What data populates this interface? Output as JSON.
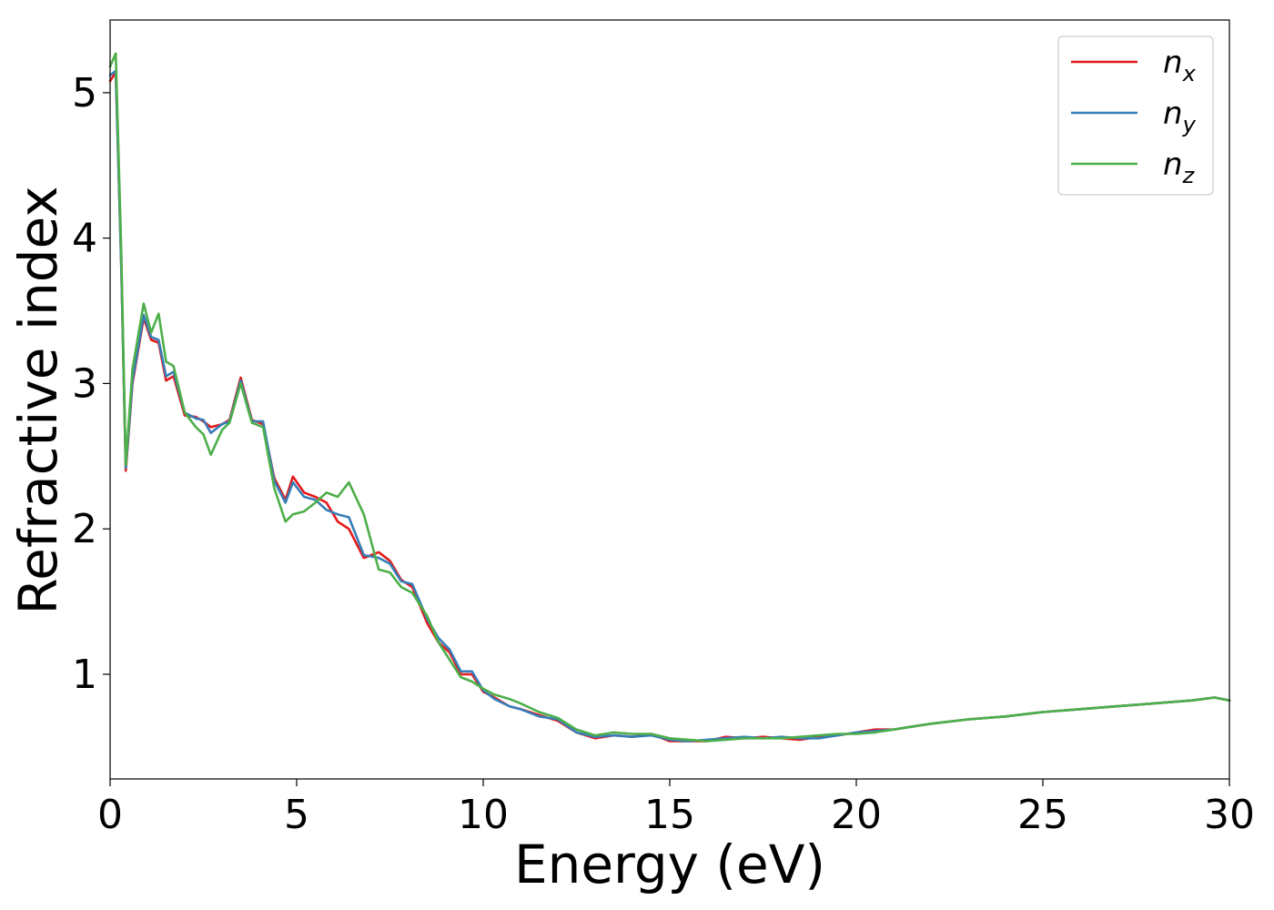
{
  "chart_data": {
    "type": "line",
    "xlabel": "Energy (eV)",
    "ylabel": "Refractive index",
    "xlim": [
      0,
      30
    ],
    "ylim": [
      0.28,
      5.5
    ],
    "x_ticks": [
      "0",
      "5",
      "10",
      "15",
      "20",
      "25",
      "30"
    ],
    "y_ticks": [
      "1",
      "2",
      "3",
      "4",
      "5"
    ],
    "grid": false,
    "legend_position": "top-right",
    "series": [
      {
        "name": "n_x",
        "label_base": "n",
        "label_sub": "x",
        "color": "#e41a1c",
        "x": [
          0,
          0.15,
          0.3,
          0.42,
          0.6,
          0.9,
          1.1,
          1.3,
          1.5,
          1.7,
          2.0,
          2.3,
          2.5,
          2.7,
          3.0,
          3.2,
          3.5,
          3.8,
          4.1,
          4.4,
          4.7,
          4.9,
          5.2,
          5.5,
          5.8,
          6.1,
          6.4,
          6.8,
          7.2,
          7.5,
          7.8,
          8.1,
          8.5,
          8.8,
          9.1,
          9.4,
          9.7,
          10.0,
          10.3,
          10.7,
          11.0,
          11.5,
          12.0,
          12.5,
          13.0,
          13.5,
          14.0,
          14.5,
          15.0,
          15.5,
          16.0,
          16.5,
          17.0,
          17.5,
          18.0,
          18.5,
          19.0,
          19.5,
          20.0,
          20.5,
          21.0,
          22.0,
          23.0,
          24.0,
          25.0,
          26.0,
          27.0,
          28.0,
          29.0,
          29.6,
          30.0
        ],
        "y": [
          5.08,
          5.14,
          3.8,
          2.4,
          3.0,
          3.45,
          3.3,
          3.28,
          3.02,
          3.05,
          2.78,
          2.77,
          2.74,
          2.7,
          2.72,
          2.75,
          3.04,
          2.75,
          2.72,
          2.35,
          2.2,
          2.36,
          2.25,
          2.22,
          2.18,
          2.05,
          2.0,
          1.8,
          1.84,
          1.78,
          1.65,
          1.6,
          1.35,
          1.22,
          1.15,
          1.0,
          1.0,
          0.88,
          0.84,
          0.78,
          0.76,
          0.72,
          0.68,
          0.6,
          0.56,
          0.58,
          0.57,
          0.59,
          0.54,
          0.54,
          0.54,
          0.57,
          0.56,
          0.57,
          0.56,
          0.55,
          0.57,
          0.58,
          0.6,
          0.62,
          0.62,
          0.66,
          0.69,
          0.71,
          0.74,
          0.76,
          0.78,
          0.8,
          0.82,
          0.84,
          0.82
        ]
      },
      {
        "name": "n_y",
        "label_base": "n",
        "label_sub": "y",
        "color": "#377eb8",
        "x": [
          0,
          0.15,
          0.3,
          0.42,
          0.6,
          0.9,
          1.1,
          1.3,
          1.5,
          1.7,
          2.0,
          2.3,
          2.5,
          2.7,
          3.0,
          3.2,
          3.5,
          3.8,
          4.1,
          4.4,
          4.7,
          4.9,
          5.2,
          5.5,
          5.8,
          6.1,
          6.4,
          6.8,
          7.2,
          7.5,
          7.8,
          8.1,
          8.5,
          8.8,
          9.1,
          9.4,
          9.7,
          10.0,
          10.3,
          10.7,
          11.0,
          11.5,
          12.0,
          12.5,
          13.0,
          13.5,
          14.0,
          14.5,
          15.0,
          15.5,
          16.0,
          16.5,
          17.0,
          17.5,
          18.0,
          18.5,
          19.0,
          19.5,
          20.0,
          20.5,
          21.0,
          22.0,
          23.0,
          24.0,
          25.0,
          26.0,
          27.0,
          28.0,
          29.0,
          29.6,
          30.0
        ],
        "y": [
          5.12,
          5.15,
          3.8,
          2.42,
          3.02,
          3.47,
          3.32,
          3.3,
          3.05,
          3.08,
          2.8,
          2.76,
          2.75,
          2.66,
          2.72,
          2.74,
          3.02,
          2.74,
          2.74,
          2.33,
          2.18,
          2.32,
          2.22,
          2.2,
          2.13,
          2.1,
          2.08,
          1.82,
          1.8,
          1.76,
          1.64,
          1.62,
          1.38,
          1.25,
          1.17,
          1.02,
          1.02,
          0.89,
          0.83,
          0.78,
          0.76,
          0.71,
          0.69,
          0.6,
          0.57,
          0.58,
          0.57,
          0.58,
          0.55,
          0.54,
          0.55,
          0.56,
          0.57,
          0.56,
          0.57,
          0.56,
          0.56,
          0.58,
          0.6,
          0.61,
          0.62,
          0.66,
          0.69,
          0.71,
          0.74,
          0.76,
          0.78,
          0.8,
          0.82,
          0.84,
          0.82
        ]
      },
      {
        "name": "n_z",
        "label_base": "n",
        "label_sub": "z",
        "color": "#4daf4a",
        "x": [
          0,
          0.15,
          0.3,
          0.42,
          0.6,
          0.9,
          1.1,
          1.3,
          1.5,
          1.7,
          2.0,
          2.3,
          2.5,
          2.7,
          3.0,
          3.2,
          3.5,
          3.8,
          4.1,
          4.4,
          4.7,
          4.9,
          5.2,
          5.5,
          5.8,
          6.1,
          6.4,
          6.8,
          7.2,
          7.5,
          7.8,
          8.1,
          8.5,
          8.8,
          9.1,
          9.4,
          9.7,
          10.0,
          10.3,
          10.7,
          11.0,
          11.5,
          12.0,
          12.5,
          13.0,
          13.5,
          14.0,
          14.5,
          15.0,
          15.5,
          16.0,
          16.5,
          17.0,
          17.5,
          18.0,
          18.5,
          19.0,
          19.5,
          20.0,
          20.5,
          21.0,
          22.0,
          23.0,
          24.0,
          25.0,
          26.0,
          27.0,
          28.0,
          29.0,
          29.6,
          30.0
        ],
        "y": [
          5.18,
          5.27,
          3.9,
          2.44,
          3.1,
          3.55,
          3.35,
          3.48,
          3.15,
          3.12,
          2.8,
          2.7,
          2.65,
          2.51,
          2.68,
          2.73,
          3.0,
          2.73,
          2.7,
          2.28,
          2.05,
          2.1,
          2.12,
          2.18,
          2.25,
          2.22,
          2.32,
          2.1,
          1.72,
          1.7,
          1.6,
          1.56,
          1.4,
          1.22,
          1.1,
          0.98,
          0.95,
          0.9,
          0.86,
          0.83,
          0.8,
          0.74,
          0.7,
          0.62,
          0.58,
          0.6,
          0.59,
          0.59,
          0.56,
          0.55,
          0.54,
          0.55,
          0.56,
          0.56,
          0.56,
          0.57,
          0.58,
          0.59,
          0.59,
          0.6,
          0.62,
          0.66,
          0.69,
          0.71,
          0.74,
          0.76,
          0.78,
          0.8,
          0.82,
          0.84,
          0.82
        ]
      }
    ]
  }
}
